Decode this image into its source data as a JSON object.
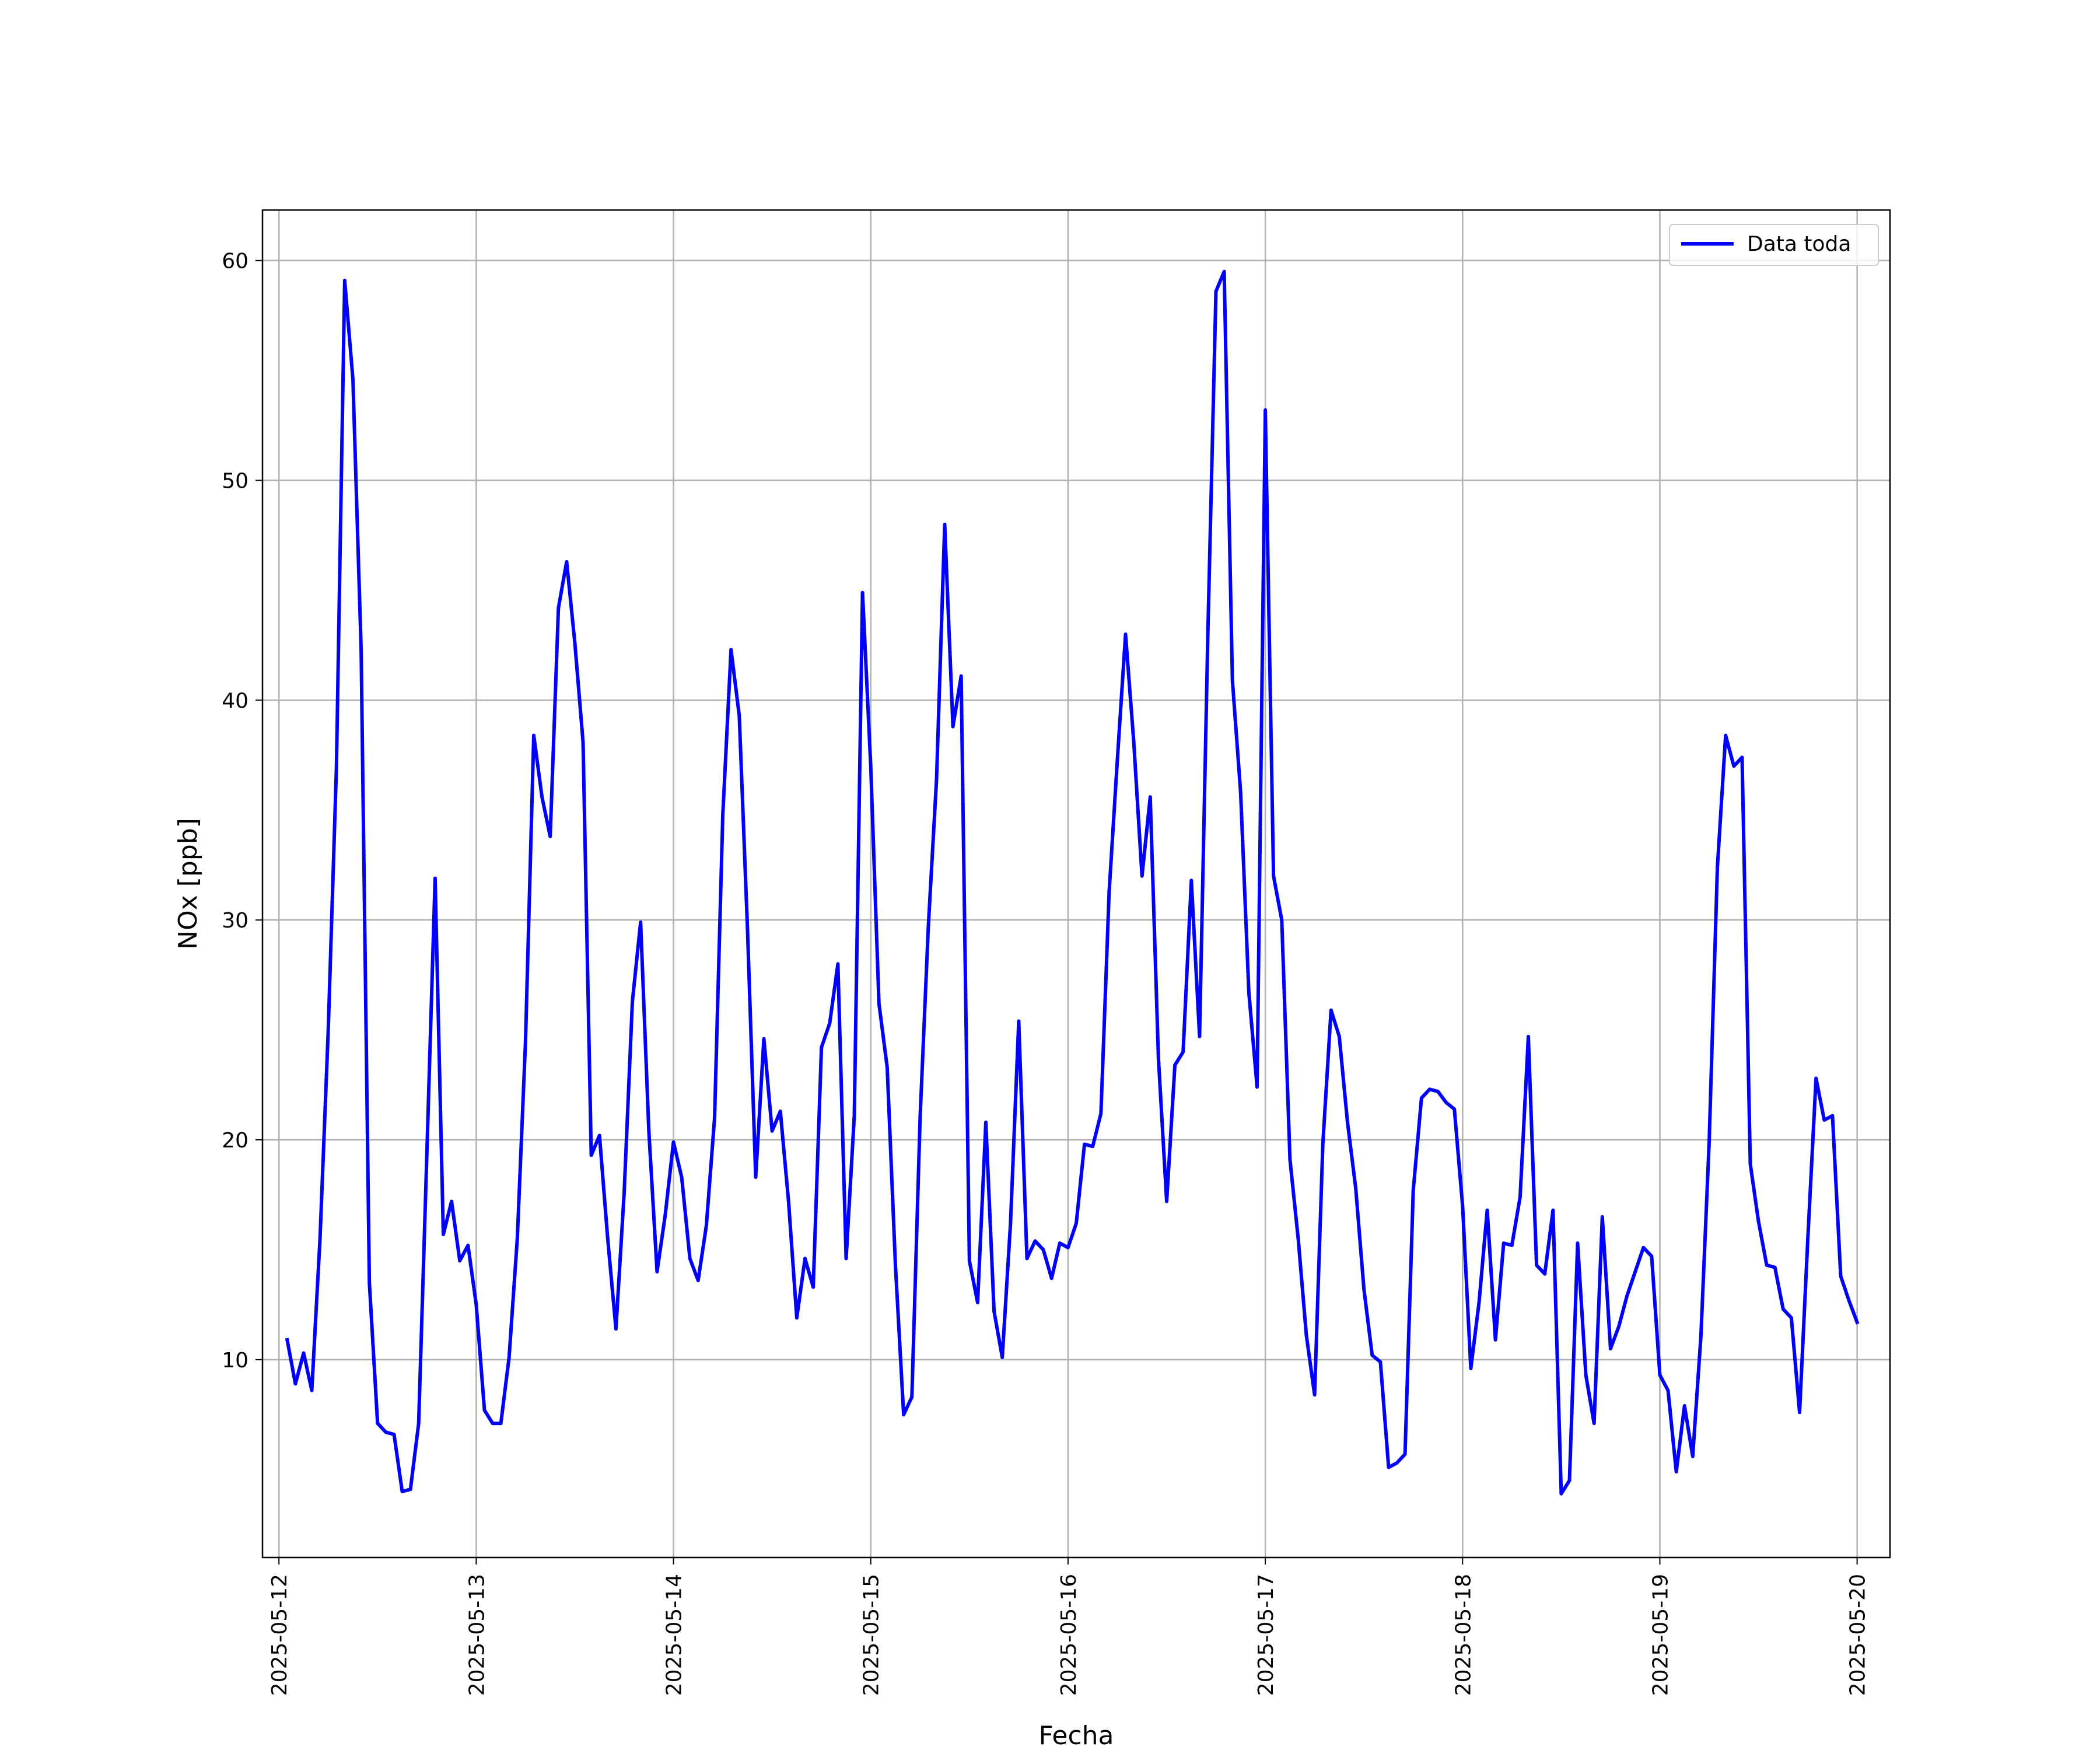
{
  "chart_data": {
    "type": "line",
    "xlabel": "Fecha",
    "ylabel": "NOx [ppb]",
    "xlim": [
      "2025-05-11 22:00",
      "2025-05-20 04:00"
    ],
    "ylim": [
      1,
      62.3
    ],
    "grid": true,
    "legend_position": "top-right",
    "x_ticks": [
      "2025-05-12",
      "2025-05-13",
      "2025-05-14",
      "2025-05-15",
      "2025-05-16",
      "2025-05-17",
      "2025-05-18",
      "2025-05-19",
      "2025-05-20"
    ],
    "y_ticks": [
      10,
      20,
      30,
      40,
      50,
      60
    ],
    "series": [
      {
        "name": "Data toda",
        "color": "#0000ff",
        "x_start": "2025-05-12 01:00",
        "x_step_hours": 1,
        "values": [
          10.9,
          8.9,
          10.3,
          8.6,
          15.5,
          25,
          37,
          59.1,
          54.6,
          42.3,
          13.5,
          7.1,
          6.7,
          6.6,
          4.0,
          4.1,
          7.1,
          19.4,
          31.9,
          15.7,
          17.2,
          14.5,
          15.2,
          12.5,
          7.7,
          7.1,
          7.1,
          10.1,
          15.5,
          24.5,
          38.4,
          35.6,
          33.8,
          44.2,
          46.3,
          42.6,
          38.1,
          19.3,
          20.2,
          15.5,
          11.4,
          17.6,
          26.3,
          29.9,
          20.4,
          14.0,
          16.6,
          19.9,
          18.3,
          14.6,
          13.6,
          16.1,
          21.0,
          34.8,
          42.3,
          39.3,
          29.6,
          18.3,
          24.6,
          20.4,
          21.3,
          17.2,
          11.9,
          14.6,
          13.3,
          24.2,
          25.3,
          28.0,
          14.6,
          21.1,
          44.9,
          37.0,
          26.2,
          23.3,
          14.3,
          7.5,
          8.3,
          21.0,
          29.7,
          36.4,
          48.0,
          38.8,
          41.1,
          14.5,
          12.6,
          20.8,
          12.2,
          10.1,
          16.2,
          25.4,
          14.6,
          15.4,
          15.0,
          13.7,
          15.3,
          15.1,
          16.2,
          19.8,
          19.7,
          21.2,
          31.3,
          37.3,
          43.0,
          38.1,
          32.0,
          35.6,
          23.7,
          17.2,
          23.4,
          24.0,
          31.8,
          24.7,
          42.9,
          58.6,
          59.5,
          40.9,
          35.8,
          26.7,
          22.4,
          53.2,
          32.0,
          30.0,
          19.1,
          15.5,
          11.1,
          8.4,
          19.8,
          25.9,
          24.7,
          20.8,
          17.8,
          13.2,
          10.2,
          9.9,
          5.1,
          5.3,
          5.7,
          17.7,
          21.9,
          22.3,
          22.2,
          21.7,
          21.4,
          17.0,
          9.6,
          12.6,
          16.8,
          10.9,
          15.3,
          15.2,
          17.4,
          24.7,
          14.3,
          13.9,
          16.8,
          3.9,
          4.5,
          15.3,
          9.3,
          7.1,
          16.5,
          10.5,
          11.5,
          12.9,
          14.0,
          15.1,
          14.7,
          9.3,
          8.6,
          4.9,
          7.9,
          5.6,
          11.1,
          19.9,
          32.4,
          38.4,
          37.0,
          37.4,
          18.9,
          16.3,
          14.3,
          14.2,
          12.3,
          11.9,
          7.6,
          15.5,
          22.8,
          20.9,
          21.1,
          13.8,
          12.7,
          11.7
        ]
      }
    ]
  }
}
